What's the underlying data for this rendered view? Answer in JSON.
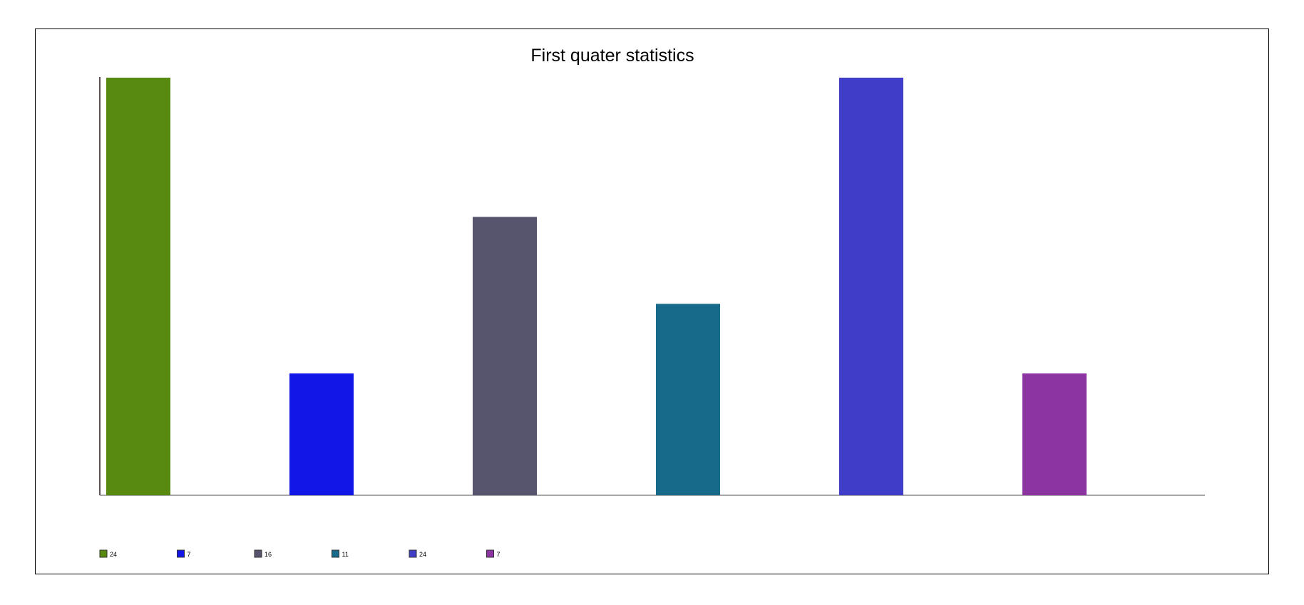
{
  "chart_data": {
    "type": "bar",
    "title": "First quater statistics",
    "xlabel": "",
    "ylabel": "",
    "ylim": [
      0,
      24
    ],
    "grid": false,
    "legend_placement": "bottom-left",
    "values": [
      24,
      7,
      16,
      11,
      24,
      7
    ],
    "colors": [
      "#588a11",
      "#1217e8",
      "#57546d",
      "#186a8b",
      "#403dc9",
      "#8c34a2"
    ],
    "legend": [
      "24",
      "7",
      "16",
      "11",
      "24",
      "7"
    ]
  }
}
